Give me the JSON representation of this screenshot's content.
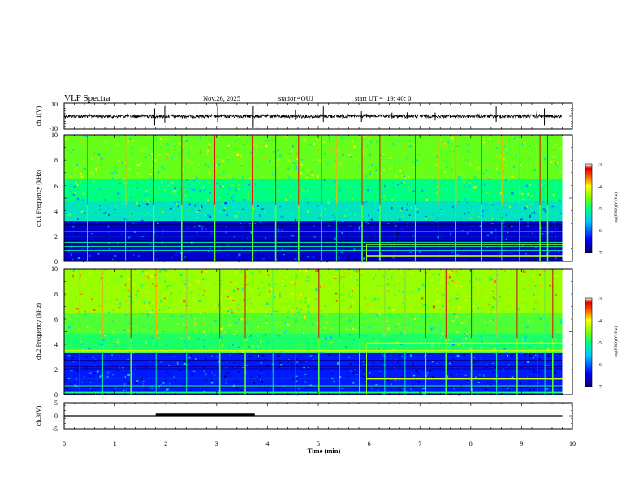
{
  "header": {
    "title": "VLF Spectra",
    "date": "Nov.26, 2025",
    "station": "station=OUJ",
    "start_ut": "start UT =  19: 40: 0"
  },
  "chart_data": [
    {
      "type": "line",
      "name": "ch1-waveform",
      "ylabel": "ch.1(V)",
      "ylim": [
        -10,
        10
      ],
      "yticks": [
        "10",
        "-10"
      ],
      "x_range": [
        0,
        10
      ],
      "trace_end_min": 9.8,
      "baseline": 0,
      "spike_times_min": [
        1.78,
        1.98,
        3.02,
        3.72,
        4.55,
        5.1,
        5.85,
        6.45,
        6.75,
        7.3,
        8.5,
        9.3,
        9.45
      ]
    },
    {
      "type": "heatmap",
      "name": "ch1-spectrogram",
      "ylabel": "ch.1\nFrequency (kHz)",
      "y_range": [
        0,
        10
      ],
      "yticks": [
        "0",
        "2",
        "4",
        "6",
        "8",
        "10"
      ],
      "x_range": [
        0,
        10
      ],
      "data_end_min": 9.8,
      "colorbar": {
        "label": "log(PSD)(V²/Hz)",
        "range": [
          -7,
          -3
        ],
        "ticks": [
          "-3",
          "-4",
          "-5",
          "-6",
          "-7"
        ]
      },
      "bands": [
        {
          "from_khz": 0,
          "to_khz": 3.2,
          "log_psd": -6.6
        },
        {
          "from_khz": 3.2,
          "to_khz": 4.8,
          "log_psd": -5.3
        },
        {
          "from_khz": 4.8,
          "to_khz": 6.5,
          "log_psd": -5.0
        },
        {
          "from_khz": 6.5,
          "to_khz": 10,
          "log_psd": -4.6
        }
      ],
      "sferic_times_min": [
        0.45,
        1.2,
        1.75,
        2.3,
        2.95,
        3.7,
        4.15,
        4.6,
        5.05,
        5.35,
        5.85,
        6.2,
        6.5,
        6.9,
        7.35,
        7.7,
        8.2,
        8.6,
        8.95,
        9.35,
        9.5,
        9.65
      ],
      "tone_lines": [
        {
          "start_min": 5.95,
          "end_min": 9.8,
          "freq_khz": 1.35
        },
        {
          "start_min": 5.95,
          "end_min": 9.8,
          "freq_khz": 0.45
        }
      ]
    },
    {
      "type": "heatmap",
      "name": "ch2-spectrogram",
      "ylabel": "ch.2\nFrequency (kHz)",
      "y_range": [
        0,
        10
      ],
      "yticks": [
        "0",
        "2",
        "4",
        "6",
        "8",
        "10"
      ],
      "x_range": [
        0,
        10
      ],
      "data_end_min": 9.8,
      "colorbar": {
        "label": "log(PSD)(V²/Hz)",
        "range": [
          -7,
          -3
        ],
        "ticks": [
          "-3",
          "-4",
          "-5",
          "-6",
          "-7"
        ]
      },
      "bands": [
        {
          "from_khz": 0,
          "to_khz": 3.3,
          "log_psd": -6.3
        },
        {
          "from_khz": 3.3,
          "to_khz": 4.9,
          "log_psd": -4.9
        },
        {
          "from_khz": 4.9,
          "to_khz": 6.5,
          "log_psd": -4.7
        },
        {
          "from_khz": 6.5,
          "to_khz": 10,
          "log_psd": -4.4
        }
      ],
      "sferic_times_min": [
        0.3,
        0.75,
        1.3,
        1.8,
        2.4,
        3.05,
        3.55,
        4.1,
        4.55,
        5.0,
        5.4,
        5.8,
        6.3,
        6.7,
        7.1,
        7.5,
        8.0,
        8.5,
        8.9,
        9.3,
        9.45,
        9.6
      ],
      "tone_lines": [
        {
          "start_min": 0,
          "end_min": 9.8,
          "freq_khz": 3.5
        },
        {
          "start_min": 5.95,
          "end_min": 9.8,
          "freq_khz": 4.1
        },
        {
          "start_min": 5.95,
          "end_min": 9.8,
          "freq_khz": 1.25
        }
      ]
    },
    {
      "type": "line",
      "name": "ch3-signal",
      "ylabel": "ch.3(V)",
      "ylim": [
        -5,
        5
      ],
      "yticks": [
        "5",
        "0",
        "-5"
      ],
      "x_range": [
        0,
        10
      ],
      "trace_end_min": 9.8,
      "baseline": 0,
      "high_segment": {
        "start_min": 1.8,
        "end_min": 3.75,
        "value": 0.4
      }
    }
  ],
  "x_axis": {
    "label": "Time (min)",
    "range": [
      0,
      10
    ],
    "ticks": [
      "0",
      "1",
      "2",
      "3",
      "4",
      "5",
      "6",
      "7",
      "8",
      "9",
      "10"
    ]
  }
}
